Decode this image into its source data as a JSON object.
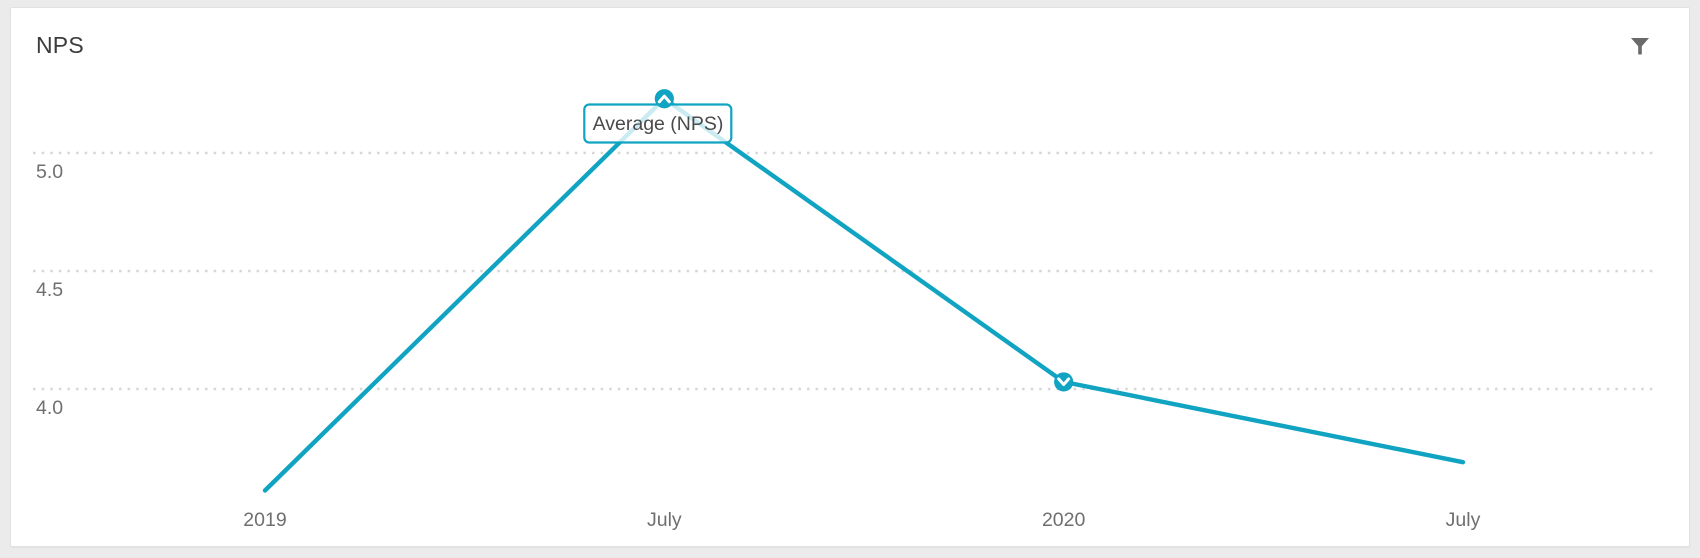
{
  "header": {
    "title": "NPS"
  },
  "controls": {
    "filter_icon": "funnel-filter"
  },
  "tooltip": {
    "label": "Average (NPS)"
  },
  "colors": {
    "line": "#10a4c2",
    "grid": "#d8d8d8",
    "axis_text": "#6f6f6f",
    "tooltip_text": "#4a4a4a",
    "icon": "#6a6a6a",
    "card_bg": "#ffffff",
    "page_bg": "#ebebeb"
  },
  "chart_data": {
    "type": "line",
    "title": "NPS",
    "categories": [
      "2019",
      "July",
      "2020",
      "July"
    ],
    "series": [
      {
        "name": "Average (NPS)",
        "values": [
          3.57,
          5.23,
          4.03,
          3.69
        ]
      }
    ],
    "yticks": [
      "5.0",
      "4.5",
      "4.0"
    ],
    "ylim": [
      3.4,
      5.4
    ],
    "grid": "horizontal-dotted",
    "legend_position": "none",
    "markers": [
      {
        "index": 1,
        "shape": "circle-chevron-up"
      },
      {
        "index": 2,
        "shape": "circle-chevron-down"
      }
    ],
    "tooltip": {
      "label": "Average (NPS)",
      "attached_index": 1
    }
  }
}
